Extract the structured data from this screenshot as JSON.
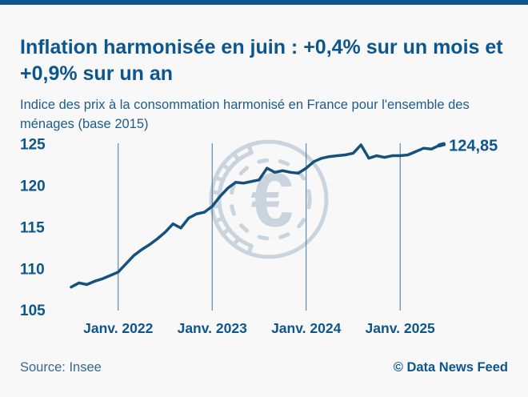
{
  "page": {
    "title": "Inflation harmonisée en juin : +0,4% sur un mois et +0,9% sur un an",
    "subtitle": "Indice des prix à la consommation harmonisé en France pour l'ensemble des ménages (base 2015)",
    "source": "Source: Insee",
    "credit": "© Data News Feed"
  },
  "colors": {
    "accent_navy": "#0c568f",
    "line": "#16517c",
    "gridline": "#41759d",
    "watermark": "#c9d4df",
    "background": "#f8f8f8"
  },
  "icons": {
    "watermark": "euro-coin-icon"
  },
  "chart_data": {
    "type": "line",
    "title": "Inflation harmonisée en juin : +0,4% sur un mois et +0,9% sur un an",
    "subtitle": "Indice des prix à la consommation harmonisé en France pour l'ensemble des ménages (base 2015)",
    "xlabel": "",
    "ylabel": "",
    "ylim": [
      105,
      125
    ],
    "yticks": [
      105,
      110,
      115,
      120,
      125
    ],
    "grid": "vertical-only",
    "legend_position": "none",
    "x": [
      "2021-07",
      "2021-08",
      "2021-09",
      "2021-10",
      "2021-11",
      "2021-12",
      "2022-01",
      "2022-02",
      "2022-03",
      "2022-04",
      "2022-05",
      "2022-06",
      "2022-07",
      "2022-08",
      "2022-09",
      "2022-10",
      "2022-11",
      "2022-12",
      "2023-01",
      "2023-02",
      "2023-03",
      "2023-04",
      "2023-05",
      "2023-06",
      "2023-07",
      "2023-08",
      "2023-09",
      "2023-10",
      "2023-11",
      "2023-12",
      "2024-01",
      "2024-02",
      "2024-03",
      "2024-04",
      "2024-05",
      "2024-06",
      "2024-07",
      "2024-08",
      "2024-09",
      "2024-10",
      "2024-11",
      "2024-12",
      "2025-01",
      "2025-02",
      "2025-03",
      "2025-04",
      "2025-05",
      "2025-06"
    ],
    "values": [
      107.8,
      108.3,
      108.1,
      108.5,
      108.8,
      109.2,
      109.6,
      110.6,
      111.6,
      112.3,
      112.9,
      113.6,
      114.4,
      115.4,
      114.9,
      116.1,
      116.6,
      116.8,
      117.5,
      118.7,
      119.7,
      120.4,
      120.3,
      120.5,
      120.7,
      122.1,
      121.6,
      121.8,
      121.6,
      121.5,
      122.1,
      122.9,
      123.3,
      123.5,
      123.6,
      123.7,
      123.9,
      124.9,
      123.3,
      123.6,
      123.4,
      123.6,
      123.6,
      123.7,
      124.1,
      124.5,
      124.4,
      124.85
    ],
    "xticks": [
      {
        "index": 6,
        "label": "Janv. 2022"
      },
      {
        "index": 18,
        "label": "Janv. 2023"
      },
      {
        "index": 30,
        "label": "Janv. 2024"
      },
      {
        "index": 42,
        "label": "Janv. 2025"
      }
    ],
    "last_value": 124.85,
    "end_label": "124,85"
  }
}
